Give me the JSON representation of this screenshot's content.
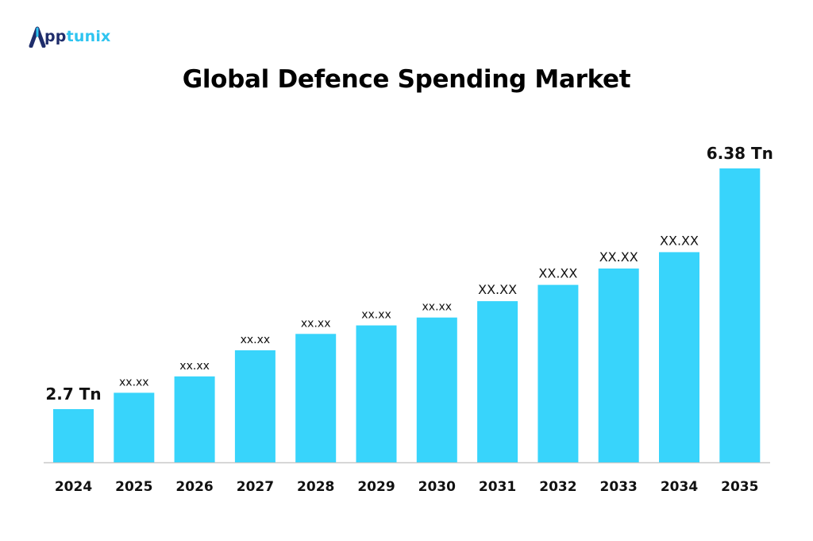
{
  "brand": {
    "name_prefix": "A",
    "name_part1": "pp",
    "name_part2": "tunix",
    "primary_color": "#1f2d6b",
    "accent_color": "#2ec4f0",
    "icon": "apptunix-logo-icon"
  },
  "chart_data": {
    "type": "bar",
    "title": "Global Defence Spending Market",
    "xlabel": "",
    "ylabel": "",
    "categories": [
      "2024",
      "2025",
      "2026",
      "2027",
      "2028",
      "2029",
      "2030",
      "2031",
      "2032",
      "2033",
      "2034",
      "2035"
    ],
    "values": [
      2.7,
      2.95,
      3.2,
      3.6,
      3.85,
      3.98,
      4.1,
      4.35,
      4.6,
      4.85,
      5.1,
      6.38
    ],
    "data_labels": [
      "2.7 Tn",
      "xx.xx",
      "xx.xx",
      "xx.xx",
      "xx.xx",
      "xx.xx",
      "xx.xx",
      "XX.XX",
      "XX.XX",
      "XX.XX",
      "XX.XX",
      "6.38 Tn"
    ],
    "bar_color": "#38d4fb",
    "axis_color": "#c8c8c8",
    "grid": false,
    "legend": "none"
  }
}
